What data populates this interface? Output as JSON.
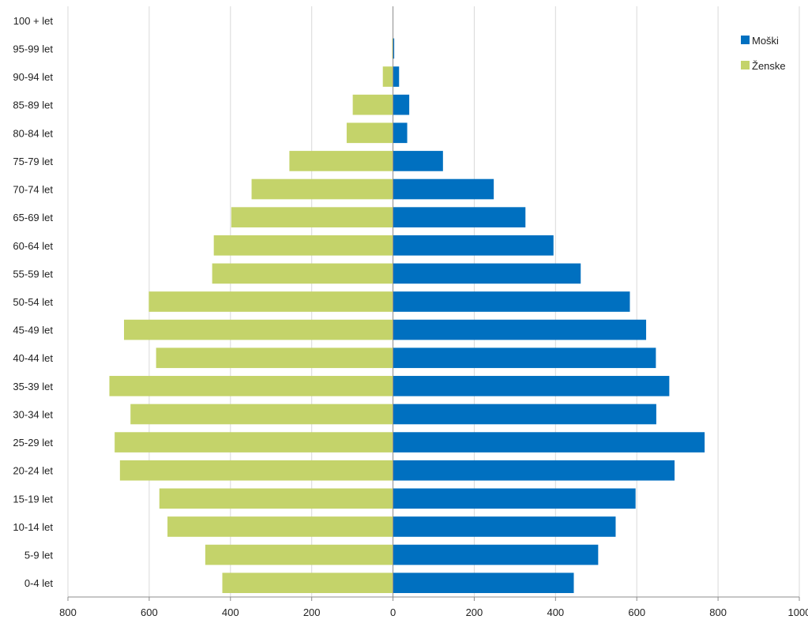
{
  "chart_data": {
    "type": "bar",
    "orientation": "horizontal",
    "layout": "population-pyramid",
    "categories": [
      "0-4 let",
      "5-9 let",
      "10-14 let",
      "15-19 let",
      "20-24 let",
      "25-29 let",
      "30-34 let",
      "35-39 let",
      "40-44 let",
      "45-49 let",
      "50-54 let",
      "55-59 let",
      "60-64 let",
      "65-69 let",
      "70-74 let",
      "75-79 let",
      "80-84 let",
      "85-89 let",
      "90-94 let",
      "95-99 let",
      "100 + let"
    ],
    "series": [
      {
        "name": "Moški",
        "color": "#0070C0",
        "side": "right",
        "values": [
          445,
          505,
          548,
          597,
          693,
          767,
          648,
          680,
          647,
          623,
          583,
          462,
          395,
          326,
          248,
          123,
          35,
          40,
          15,
          3,
          0
        ]
      },
      {
        "name": "Ženske",
        "color": "#C4D36A",
        "side": "left",
        "values": [
          420,
          462,
          555,
          575,
          672,
          685,
          646,
          698,
          583,
          662,
          601,
          445,
          441,
          398,
          348,
          255,
          114,
          99,
          25,
          2,
          0
        ]
      }
    ],
    "x_ticks": [
      "800",
      "600",
      "400",
      "200",
      "0",
      "200",
      "400",
      "600",
      "800",
      "1000"
    ],
    "xlim": [
      -800,
      1000
    ],
    "grid": "vertical",
    "legend_position": "top-right",
    "title": "",
    "xlabel": "",
    "ylabel": ""
  }
}
